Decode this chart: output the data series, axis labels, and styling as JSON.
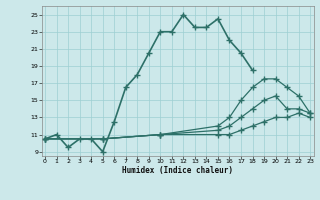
{
  "background_color": "#cce8ea",
  "grid_color": "#9ecfd2",
  "line_color": "#2d7068",
  "xlabel": "Humidex (Indice chaleur)",
  "ylim": [
    8.5,
    26.0
  ],
  "xlim": [
    -0.3,
    23.3
  ],
  "yticks": [
    9,
    11,
    13,
    15,
    17,
    19,
    21,
    23,
    25
  ],
  "xticks": [
    0,
    1,
    2,
    3,
    4,
    5,
    6,
    7,
    8,
    9,
    10,
    11,
    12,
    13,
    14,
    15,
    16,
    17,
    18,
    19,
    20,
    21,
    22,
    23
  ],
  "series": [
    {
      "x": [
        0,
        1,
        2,
        3,
        4,
        5,
        6,
        7,
        8,
        9,
        10,
        11,
        12,
        13,
        14,
        15,
        16,
        17,
        18
      ],
      "y": [
        10.5,
        11.0,
        9.5,
        10.5,
        10.5,
        9.0,
        12.5,
        16.5,
        18.0,
        20.5,
        23.0,
        23.0,
        25.0,
        23.5,
        23.5,
        24.5,
        22.0,
        20.5,
        18.5
      ],
      "linewidth": 1.2
    },
    {
      "x": [
        0,
        5,
        10,
        15,
        16,
        17,
        18,
        19,
        20,
        21,
        22,
        23
      ],
      "y": [
        10.5,
        10.5,
        11.0,
        12.0,
        13.0,
        15.0,
        16.5,
        17.5,
        17.5,
        16.5,
        15.5,
        13.5
      ],
      "linewidth": 0.9
    },
    {
      "x": [
        0,
        5,
        10,
        15,
        16,
        17,
        18,
        19,
        20,
        21,
        22,
        23
      ],
      "y": [
        10.5,
        10.5,
        11.0,
        11.5,
        12.0,
        13.0,
        14.0,
        15.0,
        15.5,
        14.0,
        14.0,
        13.5
      ],
      "linewidth": 0.9
    },
    {
      "x": [
        0,
        5,
        10,
        15,
        16,
        17,
        18,
        19,
        20,
        21,
        22,
        23
      ],
      "y": [
        10.5,
        10.5,
        11.0,
        11.0,
        11.0,
        11.5,
        12.0,
        12.5,
        13.0,
        13.0,
        13.5,
        13.0
      ],
      "linewidth": 0.9
    }
  ]
}
